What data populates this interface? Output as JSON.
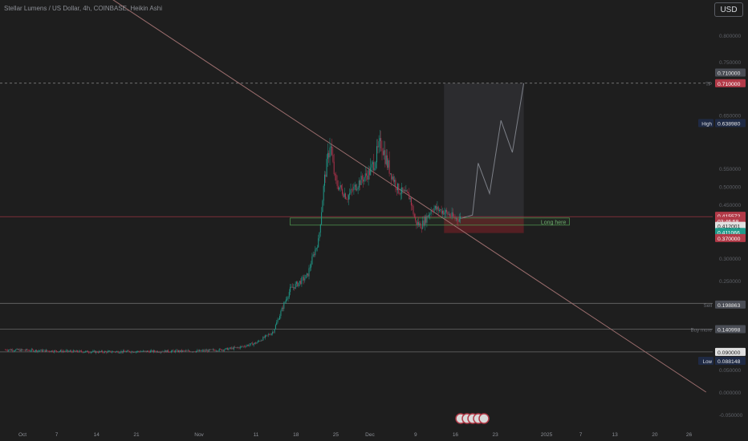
{
  "title": "Stellar Lumens / US Dollar, 4h, COINBASE, Heikin Ashi",
  "currency": "USD",
  "colors": {
    "background": "#1e1e1e",
    "up_candle": "#1f9a8a",
    "down_candle": "#b0334d",
    "trendline": "#9c6e6e",
    "last_price_line": "#b23a48",
    "target_line": "#8a8a8a",
    "profit_zone": "#2d2d30",
    "loss_zone": "#5a1f24",
    "box_border": "#4c8f4c",
    "axis_text": "#8c8f96"
  },
  "price_axis": {
    "ticks": [
      "0.800000",
      "0.750000",
      "0.650000",
      "0.550000",
      "0.500000",
      "0.450000",
      "0.300000",
      "0.250000",
      "0.050000",
      "0.000000",
      "-0.050000"
    ]
  },
  "time_axis": {
    "ticks": [
      "Oct",
      "7",
      "14",
      "21",
      "Nov",
      "11",
      "18",
      "25",
      "Dec",
      "9",
      "16",
      "23",
      "2025",
      "7",
      "13",
      "20",
      "26"
    ]
  },
  "price_labels": [
    {
      "id": "tp-label",
      "value": "0.710000",
      "kind": "gray"
    },
    {
      "id": "target-label",
      "value": "0.710000",
      "kind": "red"
    },
    {
      "id": "high-value",
      "value": "0.638980",
      "kind": "navy"
    },
    {
      "id": "price-label",
      "value": "0.415572",
      "kind": "red"
    },
    {
      "id": "countdown",
      "value": "03:46:58",
      "kind": "red"
    },
    {
      "id": "entry-label",
      "value": "0.412001",
      "kind": "white"
    },
    {
      "id": "current-label",
      "value": "0.411066",
      "kind": "green"
    },
    {
      "id": "stop-label",
      "value": "0.370000",
      "kind": "red"
    },
    {
      "id": "sell-value",
      "value": "0.198863",
      "kind": "gray"
    },
    {
      "id": "buy-more-value",
      "value": "0.140998",
      "kind": "gray"
    },
    {
      "id": "level-value",
      "value": "0.090000",
      "kind": "white"
    },
    {
      "id": "low-value",
      "value": "0.088148",
      "kind": "navy"
    }
  ],
  "tags": {
    "high": "High",
    "low": "Low",
    "tp": "TP",
    "sell": "Sell",
    "buy_more": "Buy more"
  },
  "annotation": {
    "long_here": "Long here"
  },
  "chart_data": {
    "type": "candlestick",
    "title": "Stellar Lumens / US Dollar, 4h, COINBASE, Heikin Ashi",
    "ylim": [
      -0.05,
      0.85
    ],
    "xrange": [
      "2024-09-28",
      "2025-01-29"
    ],
    "grid": false,
    "series_close": [
      {
        "date": "2024-09-28",
        "close": 0.095
      },
      {
        "date": "2024-10-07",
        "close": 0.092
      },
      {
        "date": "2024-10-14",
        "close": 0.09
      },
      {
        "date": "2024-10-21",
        "close": 0.091
      },
      {
        "date": "2024-11-01",
        "close": 0.092
      },
      {
        "date": "2024-11-05",
        "close": 0.095
      },
      {
        "date": "2024-11-08",
        "close": 0.1
      },
      {
        "date": "2024-11-11",
        "close": 0.11
      },
      {
        "date": "2024-11-14",
        "close": 0.135
      },
      {
        "date": "2024-11-16",
        "close": 0.2
      },
      {
        "date": "2024-11-17",
        "close": 0.23
      },
      {
        "date": "2024-11-20",
        "close": 0.26
      },
      {
        "date": "2024-11-22",
        "close": 0.35
      },
      {
        "date": "2024-11-23",
        "close": 0.52
      },
      {
        "date": "2024-11-24",
        "close": 0.6
      },
      {
        "date": "2024-11-25",
        "close": 0.51
      },
      {
        "date": "2024-11-27",
        "close": 0.47
      },
      {
        "date": "2024-11-29",
        "close": 0.51
      },
      {
        "date": "2024-12-01",
        "close": 0.54
      },
      {
        "date": "2024-12-03",
        "close": 0.6
      },
      {
        "date": "2024-12-04",
        "close": 0.56
      },
      {
        "date": "2024-12-06",
        "close": 0.49
      },
      {
        "date": "2024-12-08",
        "close": 0.47
      },
      {
        "date": "2024-12-09",
        "close": 0.4
      },
      {
        "date": "2024-12-10",
        "close": 0.39
      },
      {
        "date": "2024-12-12",
        "close": 0.44
      },
      {
        "date": "2024-12-14",
        "close": 0.43
      },
      {
        "date": "2024-12-16",
        "close": 0.41
      },
      {
        "date": "2024-12-17",
        "close": 0.411
      }
    ],
    "projection": [
      {
        "date": "2024-12-19",
        "price": 0.42
      },
      {
        "date": "2024-12-20",
        "price": 0.56
      },
      {
        "date": "2024-12-22",
        "price": 0.48
      },
      {
        "date": "2024-12-24",
        "price": 0.64
      },
      {
        "date": "2024-12-26",
        "price": 0.58
      },
      {
        "date": "2024-12-28",
        "price": 0.71
      }
    ],
    "trendline": [
      {
        "date": "2024-10-15",
        "price": 0.88
      },
      {
        "date": "2025-01-29",
        "price": 0.0
      }
    ],
    "horizontal_levels": [
      {
        "label": "TP",
        "price": 0.71
      },
      {
        "label": "Sell",
        "price": 0.198863
      },
      {
        "label": "Buy more",
        "price": 0.140998
      },
      {
        "label": "",
        "price": 0.09
      }
    ],
    "zones": {
      "long_here_box": {
        "price_top": 0.412,
        "price_bottom": 0.392,
        "date_start": "2024-11-17",
        "date_end": "2025-01-05"
      },
      "position": {
        "date_start": "2024-12-14",
        "date_end": "2024-12-28",
        "entry": 0.412001,
        "target": 0.71,
        "stop": 0.37
      }
    }
  }
}
